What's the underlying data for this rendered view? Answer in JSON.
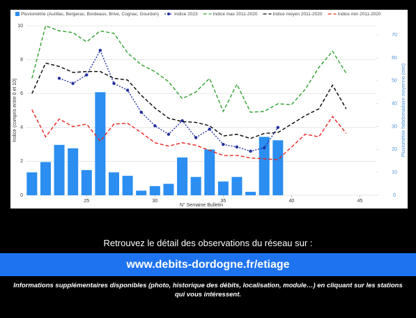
{
  "chart_data": {
    "type": "combo",
    "xlabel": "N° Semaine Bulletin",
    "ylabel": "Indice (compris entre 0 et 10)",
    "y2label": "Pluviométrie hebdomadaire moyenne (mm)",
    "x": [
      21,
      22,
      23,
      24,
      25,
      26,
      27,
      28,
      29,
      30,
      31,
      32,
      33,
      34,
      35,
      36,
      37,
      38,
      39,
      40,
      41,
      42,
      43,
      44
    ],
    "xlim": [
      20.6,
      46.2
    ],
    "xticks": [
      25,
      30,
      35,
      40,
      45
    ],
    "ylim": [
      0,
      10
    ],
    "yticks": [
      0,
      2,
      4,
      6,
      8,
      10
    ],
    "y2lim": [
      0,
      74
    ],
    "y2ticks": [
      0,
      10,
      20,
      30,
      40,
      50,
      60,
      70
    ],
    "grid": true,
    "series": [
      {
        "name": "Pluviométrie (Aurillac, Bergerac, Bordeaux, Brive, Cognac, Gourdon)",
        "type": "bar",
        "axis": "y2",
        "color": "#2b8ef0",
        "values": [
          10,
          14.5,
          22,
          20.5,
          11,
          45,
          10,
          8.5,
          2,
          4,
          5,
          16.5,
          8,
          20,
          6,
          8,
          1.5,
          25.5,
          24,
          null,
          null,
          null,
          null,
          null
        ]
      },
      {
        "name": "Indice 2023",
        "type": "line",
        "dash": "2,2",
        "markers": true,
        "color": "#1f2f9e",
        "values": [
          null,
          null,
          6.9,
          6.6,
          7.1,
          8.55,
          6.6,
          6.2,
          4.9,
          4.1,
          3.6,
          4.4,
          3.4,
          3.9,
          3.0,
          2.85,
          2.6,
          2.8,
          4.0,
          null,
          null,
          null,
          null,
          null
        ]
      },
      {
        "name": "Indice max 2011-2020",
        "type": "line",
        "dash": "5,3",
        "color": "#2ca02c",
        "values": [
          6.9,
          10.0,
          9.7,
          9.6,
          9.05,
          9.7,
          9.55,
          8.4,
          7.7,
          7.3,
          6.7,
          5.7,
          6.1,
          6.9,
          4.95,
          6.55,
          4.9,
          4.95,
          5.4,
          5.35,
          6.25,
          7.55,
          8.5,
          7.2
        ]
      },
      {
        "name": "Indice moyen 2011-2020",
        "type": "line",
        "dash": "5,3",
        "color": "#000000",
        "values": [
          6.0,
          7.8,
          7.6,
          7.25,
          7.3,
          7.3,
          6.9,
          6.8,
          5.9,
          5.15,
          4.55,
          4.35,
          4.3,
          4.1,
          3.5,
          3.6,
          3.35,
          3.65,
          3.7,
          4.2,
          4.7,
          5.1,
          6.5,
          5.1
        ]
      },
      {
        "name": "Indice min 2011-2020",
        "type": "line",
        "dash": "5,3",
        "color": "#e8201b",
        "values": [
          5.05,
          3.45,
          4.5,
          4.05,
          4.2,
          3.2,
          4.2,
          4.25,
          3.7,
          3.1,
          2.9,
          3.1,
          2.95,
          2.65,
          2.35,
          2.35,
          2.2,
          2.15,
          2.1,
          2.85,
          3.6,
          3.45,
          4.65,
          3.65
        ]
      }
    ]
  },
  "footer": {
    "intro": "Retrouvez le détail des observations du réseau sur :",
    "link": "www.debits-dordogne.fr/etiage",
    "info": "Informations supplémentaires disponibles (photo, historique des débits, localisation, module…) en cliquant sur les stations qui vous intéressent."
  }
}
